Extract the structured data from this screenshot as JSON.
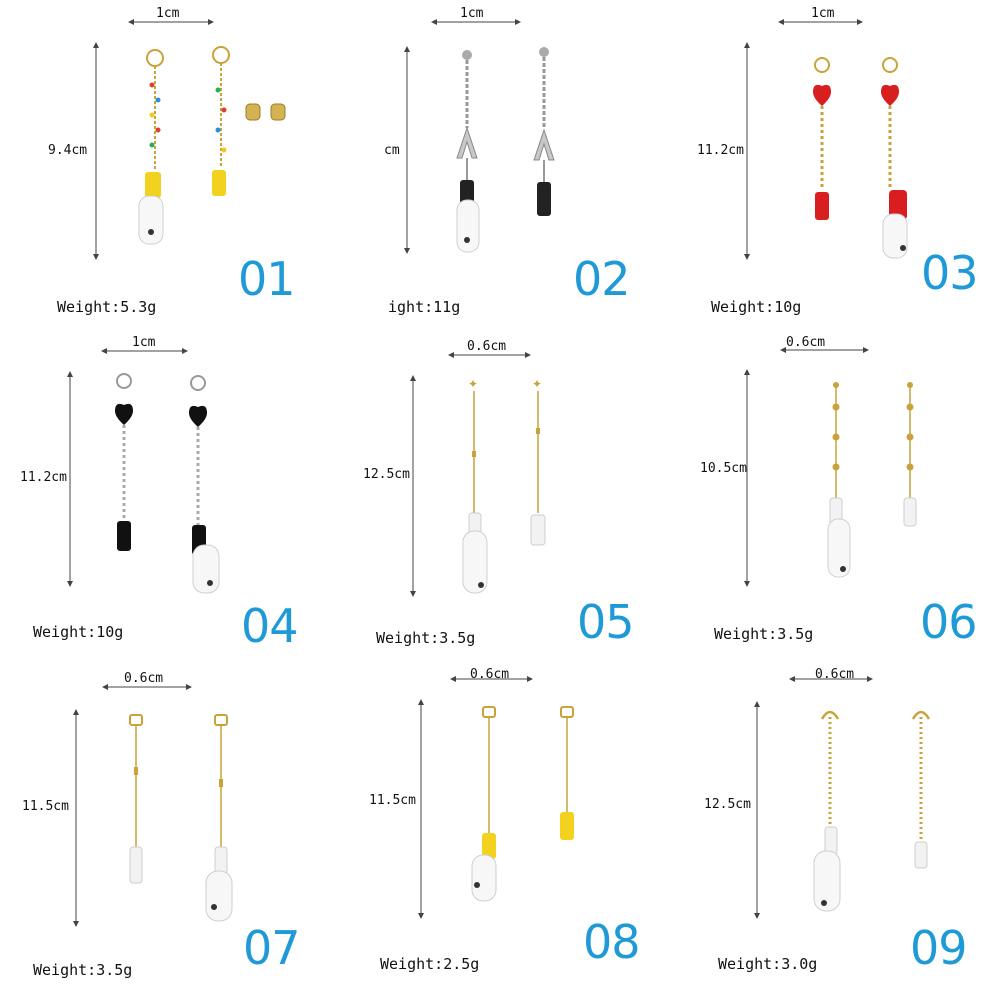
{
  "items": [
    {
      "number": "01",
      "width": "1cm",
      "height": "9.4cm",
      "weight": "Weight:5.3g",
      "color": "#f2d21e"
    },
    {
      "number": "02",
      "width": "1cm",
      "height": "cm",
      "weight": "ight:11g",
      "color": "#222222"
    },
    {
      "number": "03",
      "width": "1cm",
      "height": "11.2cm",
      "weight": "Weight:10g",
      "color": "#d81e1e"
    },
    {
      "number": "04",
      "width": "1cm",
      "height": "11.2cm",
      "weight": "Weight:10g",
      "color": "#111111"
    },
    {
      "number": "05",
      "width": "0.6cm",
      "height": "12.5cm",
      "weight": "Weight:3.5g",
      "color": "#ffffff"
    },
    {
      "number": "06",
      "width": "0.6cm",
      "height": "10.5cm",
      "weight": "Weight:3.5g",
      "color": "#ffffff"
    },
    {
      "number": "07",
      "width": "0.6cm",
      "height": "11.5cm",
      "weight": "Weight:3.5g",
      "color": "#ffffff"
    },
    {
      "number": "08",
      "width": "0.6cm",
      "height": "11.5cm",
      "weight": "Weight:2.5g",
      "color": "#f2d21e"
    },
    {
      "number": "09",
      "width": "0.6cm",
      "height": "12.5cm",
      "weight": "Weight:3.0g",
      "color": "#ffffff"
    }
  ]
}
